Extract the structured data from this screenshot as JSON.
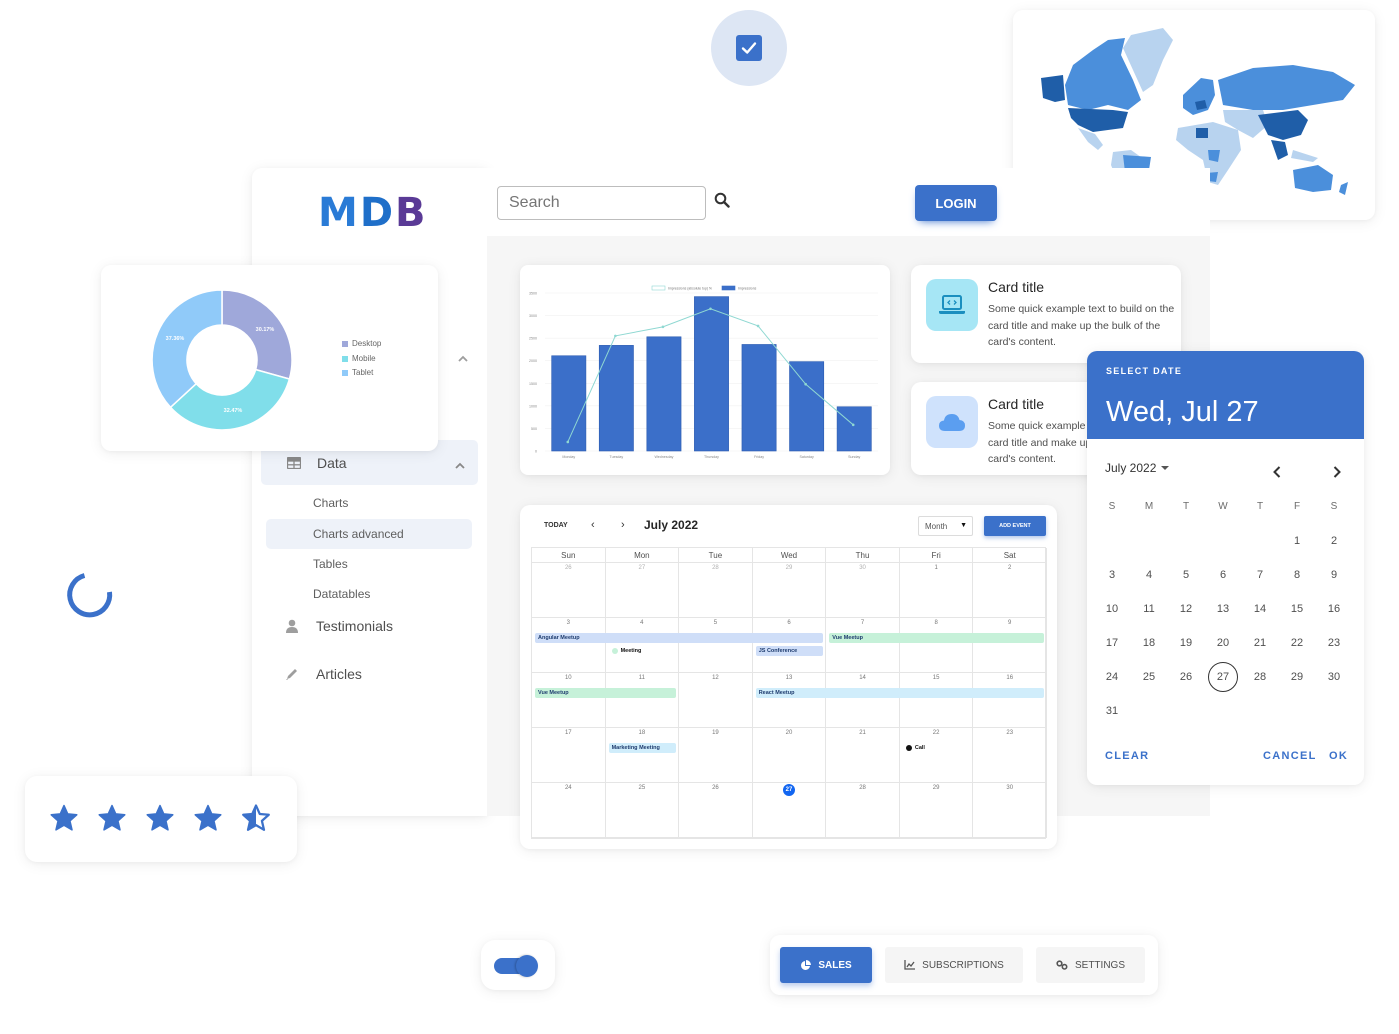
{
  "colors": {
    "primary": "#3b71ca",
    "primary_light": "#dde6f4",
    "teal_line": "#8fd8d2",
    "donut_desktop": "#9fa8da",
    "donut_mobile": "#80deea",
    "donut_tablet": "#90caf9"
  },
  "logo": {
    "text_m": "M",
    "text_d": "D",
    "text_b": "B"
  },
  "navbar": {
    "search_placeholder": "Search",
    "search_icon": "search-icon",
    "login_label": "LOGIN"
  },
  "sidebar": {
    "data_label": "Data",
    "data_icon": "table-icon",
    "sub_items": [
      "Charts",
      "Charts advanced",
      "Tables",
      "Datatables"
    ],
    "active_sub_item": "Charts advanced",
    "testimonials_label": "Testimonials",
    "articles_label": "Articles"
  },
  "chart_data": [
    {
      "type": "bar",
      "title": "",
      "categories": [
        "Monday",
        "Tuesday",
        "Wednesday",
        "Thursday",
        "Friday",
        "Saturday",
        "Sunday"
      ],
      "series": [
        {
          "name": "Impressions (absolute top) %",
          "type": "line",
          "values": [
            200,
            2550,
            2750,
            3150,
            2770,
            1480,
            580
          ]
        },
        {
          "name": "Impressions",
          "type": "bar",
          "values": [
            2110,
            2340,
            2530,
            3420,
            2360,
            1980,
            980
          ]
        }
      ],
      "y_ticks": [
        0,
        500,
        1000,
        1500,
        2000,
        2500,
        3000,
        3500
      ],
      "ylim": [
        0,
        3500
      ],
      "xlabel": "",
      "ylabel": "",
      "legend_position": "top",
      "grid": true
    },
    {
      "type": "pie",
      "title": "",
      "categories": [
        "Desktop",
        "Mobile",
        "Tablet"
      ],
      "values": [
        30.17,
        32.47,
        37.36
      ],
      "labels": [
        "30.17%",
        "32.47%",
        "37.36%"
      ],
      "legend_position": "right",
      "donut": true
    }
  ],
  "cards": [
    {
      "title": "Card title",
      "text": "Some quick example text to build on the card title and make up the bulk of the card's content.",
      "icon": "laptop-code-icon"
    },
    {
      "title": "Card title",
      "text": "Some quick example text to build on the card title and make up the bulk of the card's content.",
      "icon": "cloud-icon"
    }
  ],
  "calendar": {
    "today_label": "TODAY",
    "prev_icon": "‹",
    "next_icon": "›",
    "month_title": "July 2022",
    "view_select": "Month",
    "add_event_label": "ADD EVENT",
    "days_of_week": [
      "Sun",
      "Mon",
      "Tue",
      "Wed",
      "Thu",
      "Fri",
      "Sat"
    ],
    "weeks": [
      [
        "26",
        "27",
        "28",
        "29",
        "30",
        "1",
        "2"
      ],
      [
        "3",
        "4",
        "5",
        "6",
        "7",
        "8",
        "9"
      ],
      [
        "10",
        "11",
        "12",
        "13",
        "14",
        "15",
        "16"
      ],
      [
        "17",
        "18",
        "19",
        "20",
        "21",
        "22",
        "23"
      ],
      [
        "24",
        "25",
        "26",
        "27",
        "28",
        "29",
        "30"
      ]
    ],
    "today": "27",
    "events": [
      {
        "label": "Angular Meetup",
        "week": 1,
        "start": 0,
        "span": 4,
        "row": 0,
        "color": "#cfdef8"
      },
      {
        "label": "Vue Meetup",
        "week": 1,
        "start": 4,
        "span": 3,
        "row": 0,
        "color": "#c6f1d9"
      },
      {
        "label": "Meeting",
        "week": 1,
        "start": 1,
        "span": 1,
        "row": 1,
        "dot": "#c6f1d9"
      },
      {
        "label": "JS Conference",
        "week": 1,
        "start": 3,
        "span": 1,
        "row": 1,
        "color": "#cfdef8"
      },
      {
        "label": "Vue Meetup",
        "week": 2,
        "start": 0,
        "span": 2,
        "row": 0,
        "color": "#c6f1d9"
      },
      {
        "label": "React Meetup",
        "week": 2,
        "start": 3,
        "span": 4,
        "row": 0,
        "color": "#d0edfb"
      },
      {
        "label": "Marketing Meeting",
        "week": 3,
        "start": 1,
        "span": 1,
        "row": 0,
        "color": "#d0edfb"
      },
      {
        "label": "Call",
        "week": 3,
        "start": 5,
        "span": 1,
        "row": 0,
        "dot": "#111111"
      }
    ]
  },
  "datepicker": {
    "header_label": "SELECT DATE",
    "selected_display": "Wed, Jul 27",
    "month_year": "July 2022",
    "days_of_week": [
      "S",
      "M",
      "T",
      "W",
      "T",
      "F",
      "S"
    ],
    "weeks": [
      [
        "",
        "",
        "",
        "",
        "",
        "1",
        "2"
      ],
      [
        "3",
        "4",
        "5",
        "6",
        "7",
        "8",
        "9"
      ],
      [
        "10",
        "11",
        "12",
        "13",
        "14",
        "15",
        "16"
      ],
      [
        "17",
        "18",
        "19",
        "20",
        "21",
        "22",
        "23"
      ],
      [
        "24",
        "25",
        "26",
        "27",
        "28",
        "29",
        "30"
      ],
      [
        "31",
        "",
        "",
        "",
        "",
        "",
        ""
      ]
    ],
    "selected_day": "27",
    "clear_label": "CLEAR",
    "cancel_label": "CANCEL",
    "ok_label": "OK"
  },
  "rating": {
    "value": 4.5,
    "max": 5
  },
  "toggle": {
    "checked": true
  },
  "tabs": [
    {
      "label": "SALES",
      "icon": "chart-pie-icon",
      "active": true
    },
    {
      "label": "SUBSCRIPTIONS",
      "icon": "chart-line-icon",
      "active": false
    },
    {
      "label": "SETTINGS",
      "icon": "cogs-icon",
      "active": false
    }
  ]
}
